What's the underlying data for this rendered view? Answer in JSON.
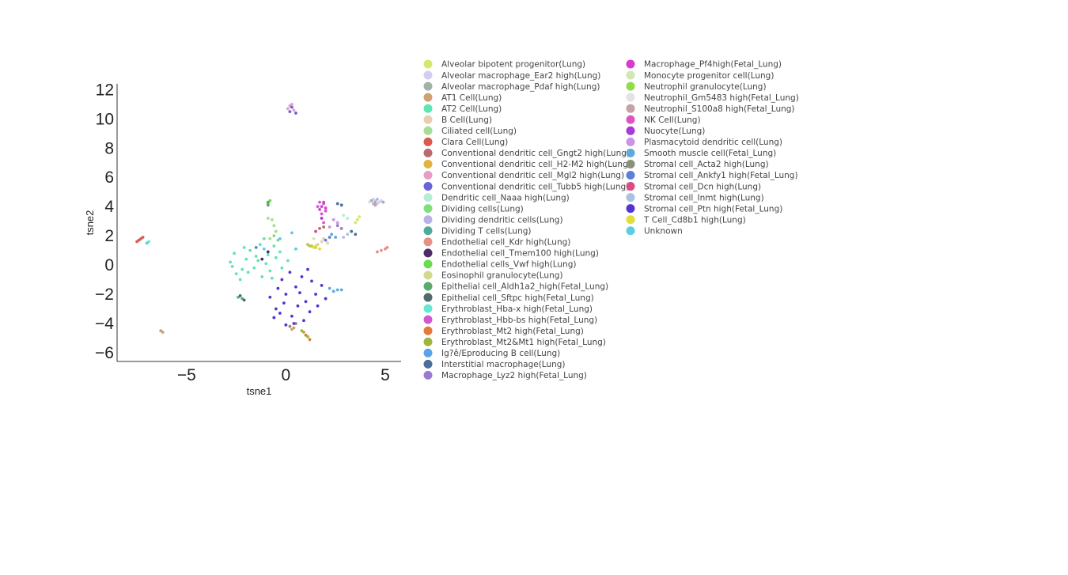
{
  "chart_data": {
    "type": "scatter",
    "title": "",
    "xlabel": "tsne1",
    "ylabel": "tsne2",
    "xlim": [
      -8.5,
      5.8
    ],
    "ylim": [
      -6.6,
      12.4
    ],
    "xticks": [
      -5,
      0,
      5
    ],
    "yticks": [
      -6,
      -4,
      -2,
      0,
      2,
      4,
      6,
      8,
      10,
      12
    ],
    "grid": false,
    "legend_position": "right",
    "series": [
      {
        "name": "Alveolar bipotent progenitor(Lung)",
        "color": "#d4e86f",
        "points": [
          [
            3.6,
            3.1
          ],
          [
            3.7,
            3.3
          ],
          [
            3.5,
            2.9
          ]
        ]
      },
      {
        "name": "Alveolar macrophage_Ear2 high(Lung)",
        "color": "#d6cdee",
        "points": [
          [
            4.5,
            4.4
          ],
          [
            4.7,
            4.3
          ],
          [
            4.4,
            4.5
          ],
          [
            4.8,
            4.4
          ],
          [
            4.6,
            4.2
          ]
        ]
      },
      {
        "name": "Alveolar macrophage_Pdaf high(Lung)",
        "color": "#9fb3a6",
        "points": [
          [
            4.5,
            4.3
          ],
          [
            4.9,
            4.3
          ],
          [
            4.3,
            4.4
          ]
        ]
      },
      {
        "name": "AT1 Cell(Lung)",
        "color": "#cfa072",
        "points": [
          [
            -6.2,
            -4.6
          ],
          [
            -6.3,
            -4.5
          ],
          [
            0.4,
            -4.3
          ],
          [
            0.3,
            -4.4
          ]
        ]
      },
      {
        "name": "AT2 Cell(Lung)",
        "color": "#5ee6b3",
        "points": [
          [
            -2.8,
            0.2
          ],
          [
            -2.2,
            -0.3
          ],
          [
            -1.5,
            0.6
          ],
          [
            -1.0,
            0.1
          ],
          [
            -0.5,
            0.5
          ],
          [
            -2.5,
            -0.6
          ],
          [
            -1.8,
            1.0
          ],
          [
            -0.8,
            -0.4
          ],
          [
            -2.0,
            0.4
          ],
          [
            -1.2,
            -0.8
          ],
          [
            -0.3,
            0.9
          ],
          [
            -2.6,
            0.8
          ],
          [
            -1.6,
            -0.2
          ],
          [
            -0.6,
            1.3
          ],
          [
            -2.3,
            -1.0
          ],
          [
            -1.3,
            1.4
          ],
          [
            -0.9,
            0.7
          ],
          [
            -1.9,
            -0.5
          ],
          [
            -2.7,
            -0.1
          ],
          [
            -1.1,
            1.8
          ],
          [
            0.1,
            0.3
          ],
          [
            -0.2,
            -0.2
          ],
          [
            -1.4,
            0.3
          ],
          [
            -2.1,
            1.2
          ],
          [
            -0.7,
            -0.9
          ]
        ]
      },
      {
        "name": "B Cell(Lung)",
        "color": "#e6cfb0",
        "points": [
          [
            1.8,
            1.6
          ],
          [
            1.9,
            1.8
          ],
          [
            2.1,
            1.5
          ]
        ]
      },
      {
        "name": "Ciliated cell(Lung)",
        "color": "#a8dd96",
        "points": [
          [
            -0.7,
            3.1
          ],
          [
            -0.9,
            3.2
          ],
          [
            -0.5,
            2.3
          ],
          [
            -0.8,
            1.8
          ],
          [
            -0.6,
            2.7
          ]
        ]
      },
      {
        "name": "Clara Cell(Lung)",
        "color": "#d95a4f",
        "points": [
          [
            -7.3,
            1.8
          ],
          [
            -7.5,
            1.6
          ],
          [
            -7.2,
            1.9
          ],
          [
            -7.4,
            1.7
          ]
        ]
      },
      {
        "name": "Conventional dendritic cell_Gngt2 high(Lung)",
        "color": "#b86a70",
        "points": [
          [
            1.7,
            2.5
          ],
          [
            1.9,
            2.6
          ]
        ]
      },
      {
        "name": "Conventional dendritic cell_H2-M2 high(Lung)",
        "color": "#e1b43e",
        "points": [
          [
            1.3,
            1.3
          ],
          [
            1.5,
            1.2
          ],
          [
            1.1,
            1.4
          ]
        ]
      },
      {
        "name": "Conventional dendritic cell_Mgl2 high(Lung)",
        "color": "#e99cc4",
        "points": [
          [
            0.2,
            10.9
          ],
          [
            0.4,
            10.6
          ],
          [
            0.3,
            11.0
          ],
          [
            0.1,
            10.7
          ]
        ]
      },
      {
        "name": "Conventional dendritic cell_Tubb5 high(Lung)",
        "color": "#6a62d8",
        "points": [
          [
            0.3,
            10.8
          ],
          [
            0.5,
            10.4
          ],
          [
            0.2,
            10.5
          ]
        ]
      },
      {
        "name": "Dendritic cell_Naaa high(Lung)",
        "color": "#b8ecd9",
        "points": [
          [
            2.9,
            3.4
          ],
          [
            3.1,
            3.2
          ]
        ]
      },
      {
        "name": "Dividing cells(Lung)",
        "color": "#7de07c",
        "points": [
          [
            -0.6,
            2.0
          ],
          [
            -0.4,
            1.7
          ]
        ]
      },
      {
        "name": "Dividing dendritic cells(Lung)",
        "color": "#b7b3e8",
        "points": [
          [
            4.6,
            4.5
          ],
          [
            4.4,
            4.2
          ]
        ]
      },
      {
        "name": "Dividing T cells(Lung)",
        "color": "#4eab97",
        "points": [
          [
            -2.4,
            -2.2
          ],
          [
            -2.2,
            -2.3
          ]
        ]
      },
      {
        "name": "Endothelial cell_Kdr high(Lung)",
        "color": "#e69086",
        "points": [
          [
            5.0,
            1.1
          ],
          [
            4.8,
            1.0
          ],
          [
            4.6,
            0.9
          ],
          [
            5.1,
            1.2
          ]
        ]
      },
      {
        "name": "Endothelial cell_Tmem100 high(Lung)",
        "color": "#4e2c66",
        "points": [
          [
            -0.9,
            0.9
          ],
          [
            -1.2,
            0.4
          ]
        ]
      },
      {
        "name": "Endothelial cells_Vwf high(Lung)",
        "color": "#6bdc4b",
        "points": [
          [
            -0.9,
            4.2
          ],
          [
            -0.8,
            4.4
          ]
        ]
      },
      {
        "name": "Eosinophil granulocyte(Lung)",
        "color": "#d3d98c",
        "points": [
          [
            1.6,
            1.4
          ]
        ]
      },
      {
        "name": "Epithelial cell_Aldh1a2_high(Fetal_Lung)",
        "color": "#5aaa6a",
        "points": [
          [
            -0.9,
            4.3
          ],
          [
            -0.9,
            4.1
          ]
        ]
      },
      {
        "name": "Epithelial cell_Sftpc high(Fetal_Lung)",
        "color": "#516b6b",
        "points": [
          [
            -2.3,
            -2.1
          ],
          [
            -2.1,
            -2.4
          ]
        ]
      },
      {
        "name": "Erythroblast_Hba-x high(Fetal_Lung)",
        "color": "#65e8d2",
        "points": [
          [
            -7.0,
            1.5
          ],
          [
            -6.9,
            1.6
          ]
        ]
      },
      {
        "name": "Erythroblast_Hbb-bs high(Fetal_Lung)",
        "color": "#cf59d4",
        "points": [
          [
            1.7,
            4.3
          ],
          [
            1.9,
            4.2
          ],
          [
            1.6,
            4.0
          ],
          [
            2.0,
            3.7
          ],
          [
            1.8,
            3.5
          ]
        ]
      },
      {
        "name": "Erythroblast_Mt2 high(Fetal_Lung)",
        "color": "#e27a3a",
        "points": [
          [
            1.2,
            -5.1
          ],
          [
            1.0,
            -4.8
          ]
        ]
      },
      {
        "name": "Erythroblast_Mt2&Mt1 high(Fetal_Lung)",
        "color": "#9fb53b",
        "points": [
          [
            0.9,
            -4.6
          ],
          [
            1.1,
            -4.9
          ],
          [
            0.8,
            -4.5
          ]
        ]
      },
      {
        "name": "Ig?ê/Eproducing B cell(Lung)",
        "color": "#5ba3e8",
        "points": [
          [
            2.3,
            2.1
          ],
          [
            2.5,
            1.9
          ]
        ]
      },
      {
        "name": "Interstitial macrophage(Lung)",
        "color": "#4c6e9c",
        "points": [
          [
            2.6,
            4.2
          ],
          [
            2.8,
            4.1
          ],
          [
            3.3,
            2.3
          ],
          [
            3.5,
            2.1
          ]
        ]
      },
      {
        "name": "Macrophage_Lyz2 high(Fetal_Lung)",
        "color": "#9b7bd0",
        "points": [
          [
            2.6,
            2.7
          ],
          [
            2.8,
            2.5
          ]
        ]
      },
      {
        "name": "Macrophage_Pf4high(Fetal_Lung)",
        "color": "#d73ad3",
        "points": [
          [
            1.8,
            4.0
          ],
          [
            1.9,
            4.3
          ],
          [
            1.7,
            3.8
          ],
          [
            2.0,
            3.9
          ]
        ]
      },
      {
        "name": "Monocyte progenitor cell(Lung)",
        "color": "#d4e6b5",
        "points": [
          [
            1.4,
            1.8
          ]
        ]
      },
      {
        "name": "Neutrophil granulocyte(Lung)",
        "color": "#8fdd47",
        "points": [
          [
            1.2,
            1.3
          ]
        ]
      },
      {
        "name": "Neutrophil_Gm5483 high(Fetal_Lung)",
        "color": "#e3e3e3",
        "points": [
          [
            4.2,
            4.3
          ]
        ]
      },
      {
        "name": "Neutrophil_S100a8 high(Fetal_Lung)",
        "color": "#c6a2a6",
        "points": [
          [
            4.5,
            4.1
          ]
        ]
      },
      {
        "name": "NK Cell(Lung)",
        "color": "#dc55bf",
        "points": [
          [
            1.9,
            2.9
          ]
        ]
      },
      {
        "name": "Nuocyte(Lung)",
        "color": "#a83ad9",
        "points": [
          [
            1.8,
            3.2
          ]
        ]
      },
      {
        "name": "Plasmacytoid dendritic cell(Lung)",
        "color": "#cb92e6",
        "points": [
          [
            2.4,
            3.1
          ],
          [
            2.6,
            2.9
          ],
          [
            2.2,
            2.6
          ]
        ]
      },
      {
        "name": "Smooth muscle cell(Fetal_Lung)",
        "color": "#5eabd7",
        "points": [
          [
            2.6,
            -1.7
          ],
          [
            2.4,
            -1.8
          ],
          [
            2.8,
            -1.7
          ],
          [
            2.2,
            -1.6
          ]
        ]
      },
      {
        "name": "Stromal cell_Acta2 high(Lung)",
        "color": "#8a9176",
        "points": [
          [
            0.2,
            -4.2
          ],
          [
            0.5,
            -4.0
          ]
        ]
      },
      {
        "name": "Stromal cell_Ankfy1 high(Fetal_Lung)",
        "color": "#5a80dc",
        "points": [
          [
            2.0,
            1.7
          ],
          [
            2.2,
            1.9
          ],
          [
            -1.5,
            1.2
          ]
        ]
      },
      {
        "name": "Stromal cell_Dcn high(Lung)",
        "color": "#dc4b86",
        "points": [
          [
            1.5,
            2.3
          ]
        ]
      },
      {
        "name": "Stromal cell_Inmt high(Lung)",
        "color": "#abc0e3",
        "points": [
          [
            2.9,
            1.9
          ],
          [
            3.1,
            2.1
          ]
        ]
      },
      {
        "name": "Stromal cell_Ptn high(Fetal_Lung)",
        "color": "#5533d3",
        "points": [
          [
            0.0,
            -2.0
          ],
          [
            0.5,
            -1.5
          ],
          [
            1.0,
            -2.5
          ],
          [
            -0.5,
            -3.0
          ],
          [
            0.3,
            -3.5
          ],
          [
            1.5,
            -2.0
          ],
          [
            -0.2,
            -1.0
          ],
          [
            0.8,
            -0.8
          ],
          [
            1.2,
            -3.2
          ],
          [
            -0.8,
            -2.2
          ],
          [
            0.6,
            -2.8
          ],
          [
            1.8,
            -1.4
          ],
          [
            0.2,
            -0.5
          ],
          [
            -0.4,
            -1.6
          ],
          [
            1.3,
            -1.1
          ],
          [
            0.9,
            -3.8
          ],
          [
            -0.1,
            -2.6
          ],
          [
            0.4,
            -4.0
          ],
          [
            1.6,
            -2.8
          ],
          [
            -0.6,
            -3.6
          ],
          [
            0.7,
            -1.9
          ],
          [
            2.0,
            -2.3
          ],
          [
            1.1,
            -0.3
          ],
          [
            -0.3,
            -3.3
          ],
          [
            0.0,
            -4.1
          ]
        ]
      },
      {
        "name": "T Cell_Cd8b1 high(Lung)",
        "color": "#e2dd3a",
        "points": [
          [
            1.5,
            1.3
          ],
          [
            1.7,
            1.1
          ],
          [
            1.4,
            1.2
          ]
        ]
      },
      {
        "name": "Unknown",
        "color": "#5dcde3",
        "points": [
          [
            -0.3,
            1.8
          ],
          [
            0.5,
            1.1
          ],
          [
            -1.1,
            1.1
          ],
          [
            0.3,
            2.2
          ],
          [
            -7.0,
            1.5
          ]
        ]
      }
    ]
  }
}
